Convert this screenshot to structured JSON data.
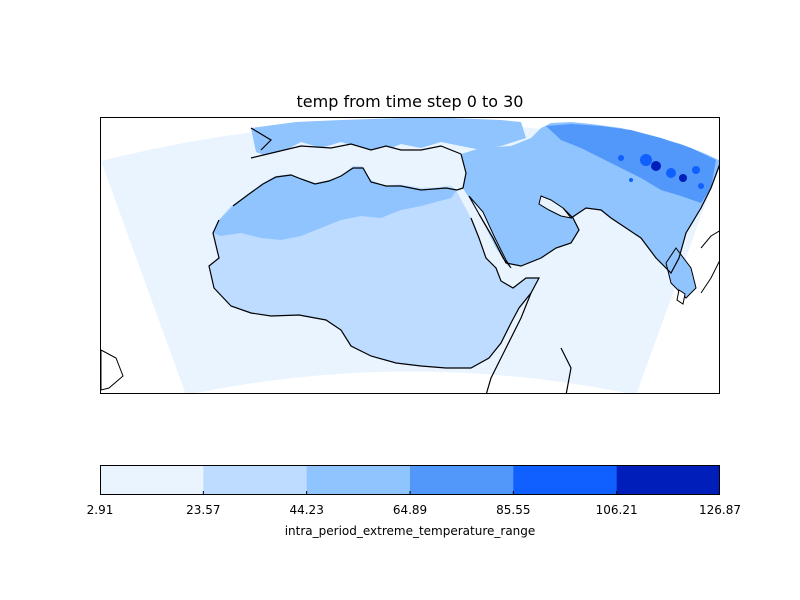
{
  "title": "temp from time step 0 to 30",
  "colorbar": {
    "label": "intra_period_extreme_temperature_range",
    "ticks": [
      "2.91",
      "23.57",
      "44.23",
      "64.89",
      "85.55",
      "106.21",
      "126.87"
    ],
    "colors": [
      "#eaf4ff",
      "#bddcff",
      "#90c4ff",
      "#5198fa",
      "#1060ff",
      "#001fba"
    ]
  },
  "map": {
    "region": "North Africa, Middle East and Arabian Peninsula",
    "ocean_color": "#eaf4ff",
    "land_low_color": "#bddcff",
    "land_mid_color": "#90c4ff",
    "land_high_color": "#5198fa",
    "coast_color": "#000000",
    "hotspot_colors": [
      "#1060ff",
      "#001fba"
    ]
  }
}
